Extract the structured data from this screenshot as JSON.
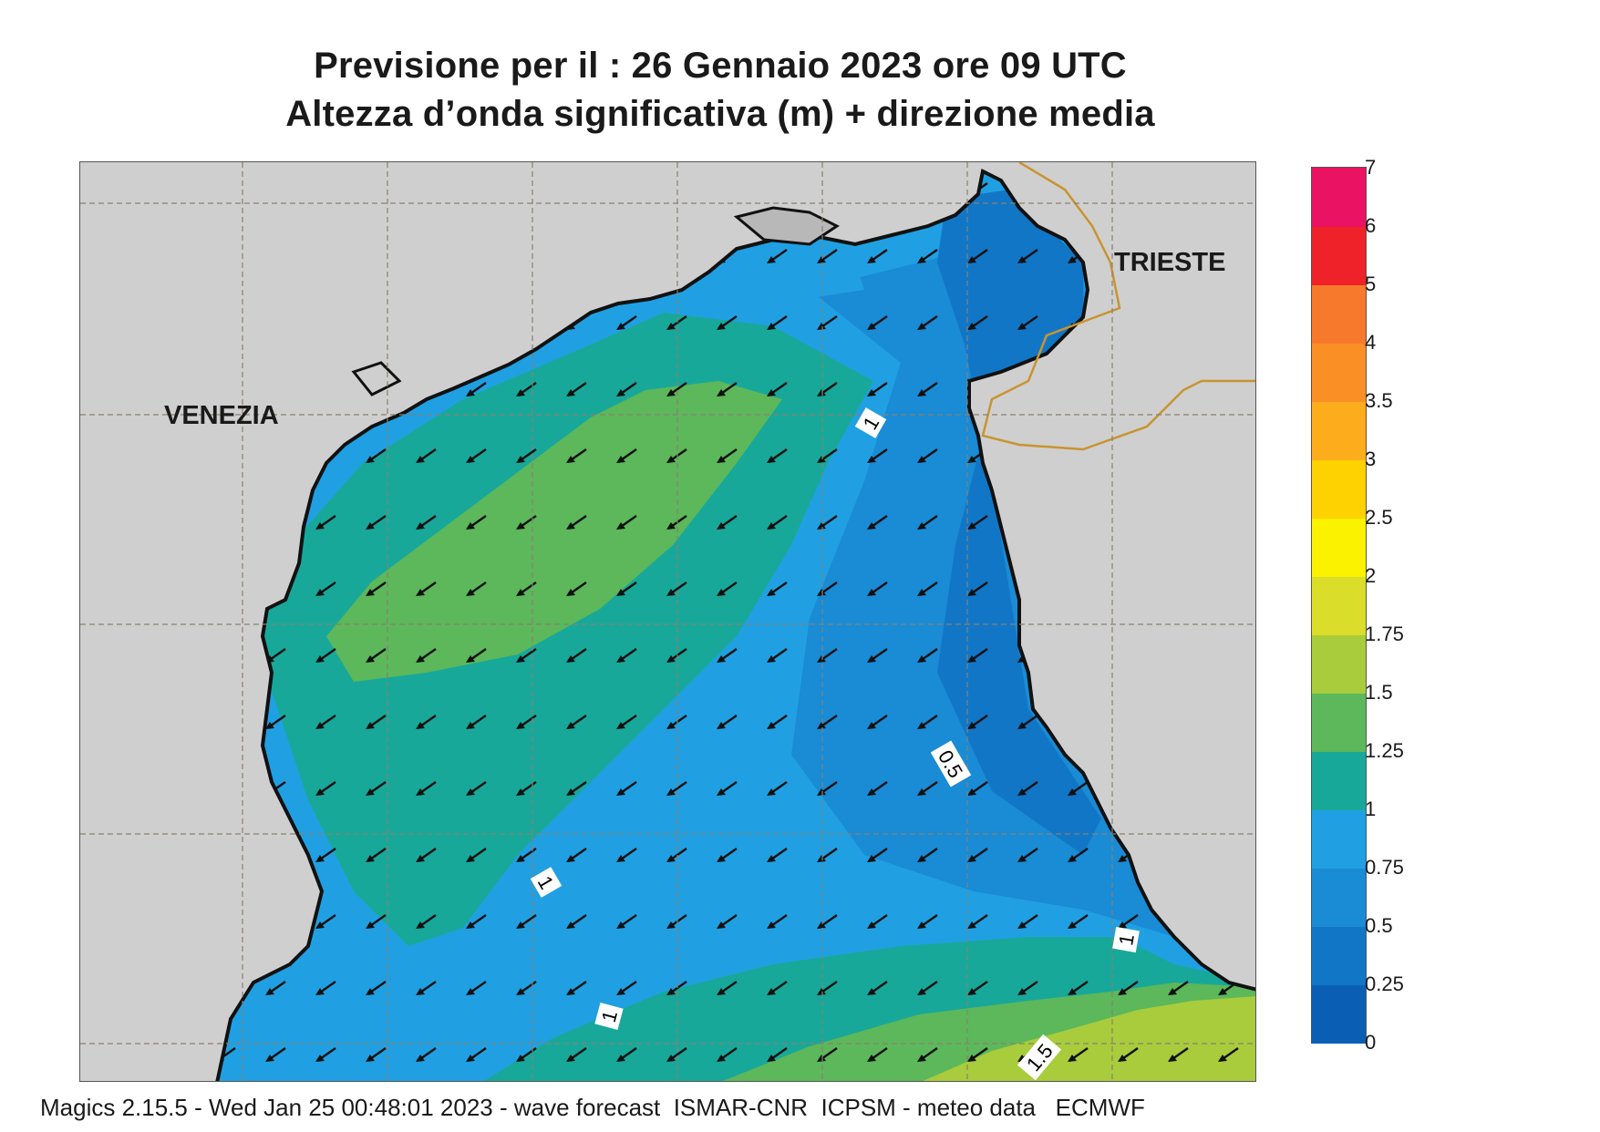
{
  "title": {
    "line1": "Previsione per il  :  26  Gennaio  2023   ore 09 UTC",
    "line2": "Altezza d’onda significativa (m) + direzione media"
  },
  "cities": [
    {
      "name": "VENEZIA"
    },
    {
      "name": "TRIESTE"
    }
  ],
  "contour_labels": [
    "1",
    "0.5",
    "1",
    "1",
    "1",
    "1.5"
  ],
  "colorbar": {
    "unit": "m",
    "levels": [
      "0",
      "0.25",
      "0.5",
      "0.75",
      "1",
      "1.25",
      "1.5",
      "1.75",
      "2",
      "2.5",
      "3",
      "3.5",
      "4",
      "5",
      "6",
      "7"
    ],
    "colors": [
      "#0a5fb5",
      "#1276c6",
      "#1a8bd5",
      "#20a0e2",
      "#18a89a",
      "#5cb85a",
      "#a8cc3c",
      "#dade2a",
      "#fbf200",
      "#fed200",
      "#fdad1c",
      "#f98f25",
      "#f7792b",
      "#ee2228",
      "#ea1263"
    ]
  },
  "wave_direction": {
    "mean_direction": "from NE towards SW"
  },
  "colors": {
    "land": "#cfcfcf",
    "coast": "#111111",
    "border": "#c89430",
    "grid": "#8a8070"
  },
  "footer": "Magics 2.15.5 - Wed Jan 25 00:48:01 2023 - wave forecast  ISMAR-CNR  ICPSM - meteo data   ECMWF"
}
